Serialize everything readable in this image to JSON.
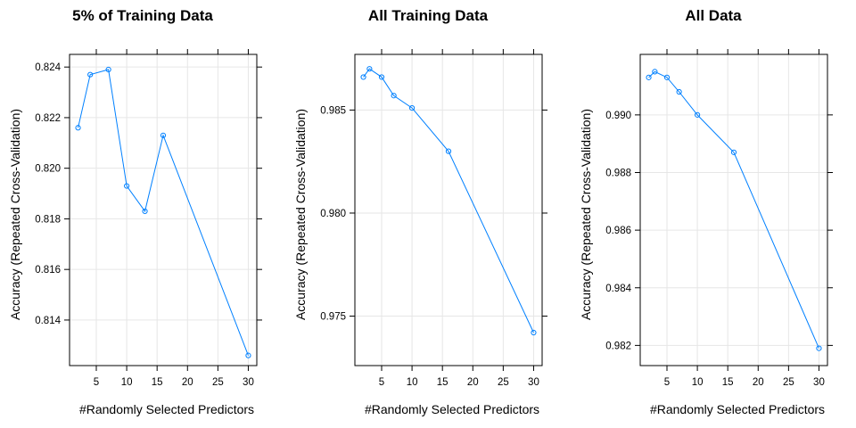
{
  "colors": {
    "series": "#0080ff",
    "grid": "#e6e6e6",
    "frame": "#000000"
  },
  "chart_data": [
    {
      "type": "line",
      "title": "5% of Training Data",
      "xlabel": "#Randomly Selected Predictors",
      "ylabel": "Accuracy (Repeated Cross-Validation)",
      "grid": true,
      "xlim": [
        0.6,
        31.4
      ],
      "ylim": [
        0.8122,
        0.8245
      ],
      "xticks": [
        5,
        10,
        15,
        20,
        25,
        30
      ],
      "yticks": [
        0.814,
        0.816,
        0.818,
        0.82,
        0.822,
        0.824
      ],
      "ytick_labels": [
        "0.814",
        "0.816",
        "0.818",
        "0.820",
        "0.822",
        "0.824"
      ],
      "x": [
        2,
        4,
        7,
        10,
        13,
        16,
        30
      ],
      "values": [
        0.8216,
        0.8237,
        0.8239,
        0.8193,
        0.8183,
        0.8213,
        0.8126
      ]
    },
    {
      "type": "line",
      "title": "All Training Data",
      "xlabel": "#Randomly Selected Predictors",
      "ylabel": "Accuracy (Repeated Cross-Validation)",
      "grid": true,
      "xlim": [
        0.6,
        31.4
      ],
      "ylim": [
        0.9726,
        0.9877
      ],
      "xticks": [
        5,
        10,
        15,
        20,
        25,
        30
      ],
      "yticks": [
        0.975,
        0.98,
        0.985
      ],
      "ytick_labels": [
        "0.975",
        "0.980",
        "0.985"
      ],
      "x": [
        2,
        3,
        5,
        7,
        10,
        16,
        30
      ],
      "values": [
        0.9866,
        0.987,
        0.9866,
        0.9857,
        0.9851,
        0.983,
        0.9742
      ]
    },
    {
      "type": "line",
      "title": "All Data",
      "xlabel": "#Randomly Selected Predictors",
      "ylabel": "Accuracy (Repeated Cross-Validation)",
      "grid": true,
      "xlim": [
        0.6,
        31.4
      ],
      "ylim": [
        0.9813,
        0.9921
      ],
      "xticks": [
        5,
        10,
        15,
        20,
        25,
        30
      ],
      "yticks": [
        0.982,
        0.984,
        0.986,
        0.988,
        0.99
      ],
      "ytick_labels": [
        "0.982",
        "0.984",
        "0.986",
        "0.988",
        "0.990"
      ],
      "x": [
        2,
        3,
        5,
        7,
        10,
        16,
        30
      ],
      "values": [
        0.9913,
        0.9915,
        0.9913,
        0.9908,
        0.99,
        0.9887,
        0.9819
      ]
    }
  ]
}
